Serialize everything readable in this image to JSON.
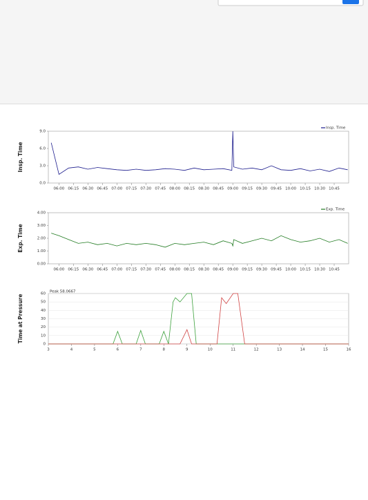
{
  "chart_data": [
    {
      "type": "line",
      "y_label": "Insp. Time",
      "x": [
        "05:52",
        "06:00",
        "06:10",
        "06:20",
        "06:30",
        "06:40",
        "06:50",
        "07:00",
        "07:10",
        "07:20",
        "07:30",
        "07:40",
        "07:50",
        "08:00",
        "08:10",
        "08:20",
        "08:30",
        "08:40",
        "08:50",
        "08:59",
        "09:00",
        "09:01",
        "09:10",
        "09:20",
        "09:30",
        "09:40",
        "09:50",
        "10:00",
        "10:10",
        "10:20",
        "10:30",
        "10:40",
        "10:50",
        "10:59"
      ],
      "series": [
        {
          "name": "Insp. Time",
          "color": "#1a1a8c",
          "values": [
            7.0,
            1.5,
            2.6,
            2.8,
            2.4,
            2.7,
            2.5,
            2.3,
            2.2,
            2.4,
            2.2,
            2.3,
            2.5,
            2.4,
            2.2,
            2.6,
            2.3,
            2.4,
            2.5,
            2.2,
            9.0,
            2.8,
            2.4,
            2.6,
            2.3,
            3.0,
            2.3,
            2.2,
            2.5,
            2.1,
            2.4,
            2.0,
            2.6,
            2.3
          ]
        }
      ],
      "xlim": [
        "05:49",
        "11:00"
      ],
      "xticks": [
        "06:00",
        "06:15",
        "06:30",
        "06:45",
        "07:00",
        "07:15",
        "07:30",
        "07:45",
        "08:00",
        "08:15",
        "08:30",
        "08:45",
        "09:00",
        "09:15",
        "09:30",
        "09:45",
        "10:00",
        "10:15",
        "10:30",
        "10:45"
      ],
      "ylim": [
        0,
        9
      ],
      "yticks": [
        {
          "value": 0,
          "label": "0.0"
        },
        {
          "value": 3,
          "label": "3.0"
        },
        {
          "value": 6,
          "label": "6.0"
        },
        {
          "value": 9,
          "label": "9.0"
        }
      ]
    },
    {
      "type": "line",
      "y_label": "Exp. Time",
      "x": [
        "05:52",
        "06:00",
        "06:10",
        "06:20",
        "06:30",
        "06:40",
        "06:50",
        "07:00",
        "07:10",
        "07:20",
        "07:30",
        "07:40",
        "07:50",
        "08:00",
        "08:10",
        "08:20",
        "08:30",
        "08:40",
        "08:50",
        "08:59",
        "09:00",
        "09:01",
        "09:10",
        "09:20",
        "09:30",
        "09:40",
        "09:50",
        "10:00",
        "10:10",
        "10:20",
        "10:30",
        "10:40",
        "10:50",
        "10:59"
      ],
      "series": [
        {
          "name": "Exp. Time",
          "color": "#1f7a1f",
          "values": [
            2.4,
            2.2,
            1.9,
            1.6,
            1.7,
            1.5,
            1.6,
            1.4,
            1.6,
            1.5,
            1.6,
            1.5,
            1.3,
            1.6,
            1.5,
            1.6,
            1.7,
            1.5,
            1.8,
            1.6,
            1.4,
            1.9,
            1.6,
            1.8,
            2.0,
            1.8,
            2.2,
            1.9,
            1.7,
            1.8,
            2.0,
            1.7,
            1.9,
            1.6
          ]
        }
      ],
      "xlim": [
        "05:49",
        "11:00"
      ],
      "xticks": [
        "06:00",
        "06:15",
        "06:30",
        "06:45",
        "07:00",
        "07:15",
        "07:30",
        "07:45",
        "08:00",
        "08:15",
        "08:30",
        "08:45",
        "09:00",
        "09:15",
        "09:30",
        "09:45",
        "10:00",
        "10:15",
        "10:30",
        "10:45"
      ],
      "ylim": [
        0,
        4
      ],
      "yticks": [
        {
          "value": 0,
          "label": "0.00"
        },
        {
          "value": 1,
          "label": "1.00"
        },
        {
          "value": 2,
          "label": "2.00"
        },
        {
          "value": 3,
          "label": "3.00"
        },
        {
          "value": 4,
          "label": "4.00"
        }
      ]
    },
    {
      "type": "line",
      "y_label": "Time at Pressure",
      "annotation": "Peak 58.0667",
      "series": [
        {
          "color": "#3aa03a",
          "x": [
            3,
            5.8,
            6,
            6.2,
            6.8,
            7,
            7.2,
            7.8,
            8,
            8.2,
            8.4,
            8.5,
            8.7,
            9,
            9.2,
            9.4,
            9.6,
            16
          ],
          "values": [
            0,
            0,
            15,
            0,
            0,
            16,
            0,
            0,
            15,
            0,
            50,
            55,
            50,
            60,
            60,
            0,
            0,
            0
          ]
        },
        {
          "color": "#d04040",
          "x": [
            3,
            8.7,
            9,
            9.2,
            10.3,
            10.5,
            10.7,
            11,
            11.2,
            11.5,
            16
          ],
          "values": [
            0,
            0,
            17,
            0,
            0,
            55,
            48,
            60,
            60,
            0,
            0
          ]
        }
      ],
      "xlim": [
        3,
        16
      ],
      "xticks": [
        3,
        4,
        5,
        6,
        7,
        8,
        9,
        10,
        11,
        12,
        13,
        14,
        15,
        16
      ],
      "ylim": [
        0,
        60
      ],
      "yticks": [
        0,
        10,
        20,
        30,
        40,
        50,
        60
      ],
      "grid": true
    }
  ]
}
